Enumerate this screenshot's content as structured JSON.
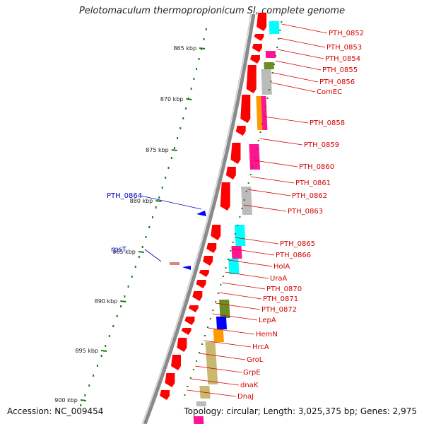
{
  "title": "Pelotomaculum thermopropionicum SI, complete genome",
  "accession": "Accession: NC_009454",
  "summary": "Topology: circular; Length: 3,025,375 bp; Genes: 2,975",
  "colors": {
    "cds_arrow": "#ff0000",
    "cyan": "#00ffff",
    "magenta": "#ff1493",
    "olive": "#6b8e23",
    "gray": "#bbbbbb",
    "orange": "#ff9900",
    "blue": "#0000ff",
    "khaki": "#c8b870",
    "label_right": "#d40000",
    "label_left": "#0000c8",
    "tick": "#1a7a1a"
  },
  "kbp_ticks": [
    "865 kbp",
    "870 kbp",
    "875 kbp",
    "880 kbp",
    "885 kbp",
    "890 kbp",
    "895 kbp",
    "900 kbp"
  ],
  "right_labels": [
    "PTH_0852",
    "PTH_0853",
    "PTH_0854",
    "PTH_0855",
    "PTH_0856",
    "ComEC",
    "PTH_0858",
    "PTH_0859",
    "PTH_0860",
    "PTH_0861",
    "PTH_0862",
    "PTH_0863",
    "PTH_0865",
    "PTH_0866",
    "HolA",
    "UraA",
    "PTH_0870",
    "PTH_0871",
    "PTH_0872",
    "LepA",
    "HemN",
    "HrcA",
    "GroL",
    "GrpE",
    "dnaK",
    "DnaJ"
  ],
  "left_labels": [
    "PTH_0864",
    "rpsT"
  ]
}
